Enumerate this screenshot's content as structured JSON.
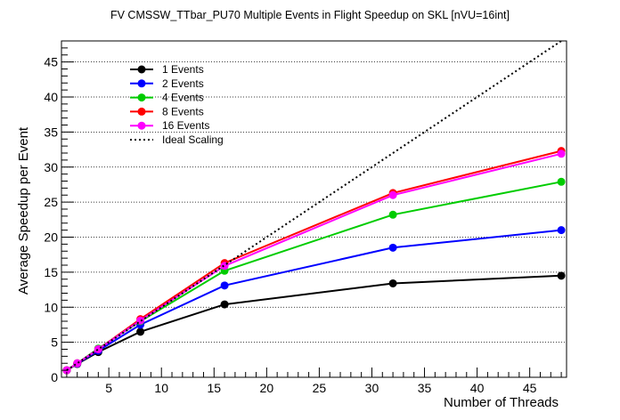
{
  "chart_data": {
    "type": "line",
    "title": "FV CMSSW_TTbar_PU70 Multiple Events in Flight Speedup on SKL [nVU=16int]",
    "xlabel": "Number of Threads",
    "ylabel": "Average Speedup per Event",
    "xlim": [
      0.5,
      48.5
    ],
    "ylim": [
      0,
      48
    ],
    "xticks": [
      5,
      10,
      15,
      20,
      25,
      30,
      35,
      40,
      45
    ],
    "yticks": [
      0,
      5,
      10,
      15,
      20,
      25,
      30,
      35,
      40,
      45
    ],
    "grid": "horizontal dotted",
    "legend_position": "top-left",
    "x": [
      1,
      2,
      4,
      8,
      16,
      32,
      48
    ],
    "series": [
      {
        "name": "1 Events",
        "color": "#000000",
        "style": "solid",
        "values": [
          1.0,
          1.9,
          3.6,
          6.5,
          10.4,
          13.4,
          14.5
        ]
      },
      {
        "name": "2 Events",
        "color": "#0000ff",
        "style": "solid",
        "values": [
          1.0,
          1.95,
          3.8,
          7.5,
          13.1,
          18.5,
          21.0
        ]
      },
      {
        "name": "4 Events",
        "color": "#00cc00",
        "style": "solid",
        "values": [
          1.0,
          2.0,
          4.1,
          8.0,
          15.2,
          23.2,
          27.9
        ]
      },
      {
        "name": "8 Events",
        "color": "#ff0000",
        "style": "solid",
        "values": [
          1.0,
          2.0,
          4.0,
          8.3,
          16.3,
          26.3,
          32.3
        ]
      },
      {
        "name": "16 Events",
        "color": "#ff00ff",
        "style": "solid",
        "values": [
          1.0,
          2.0,
          4.0,
          8.1,
          15.9,
          26.0,
          31.9
        ]
      },
      {
        "name": "Ideal Scaling",
        "color": "#000000",
        "style": "dotted",
        "values": [
          1,
          2,
          4,
          8,
          16,
          32,
          48
        ]
      }
    ]
  }
}
